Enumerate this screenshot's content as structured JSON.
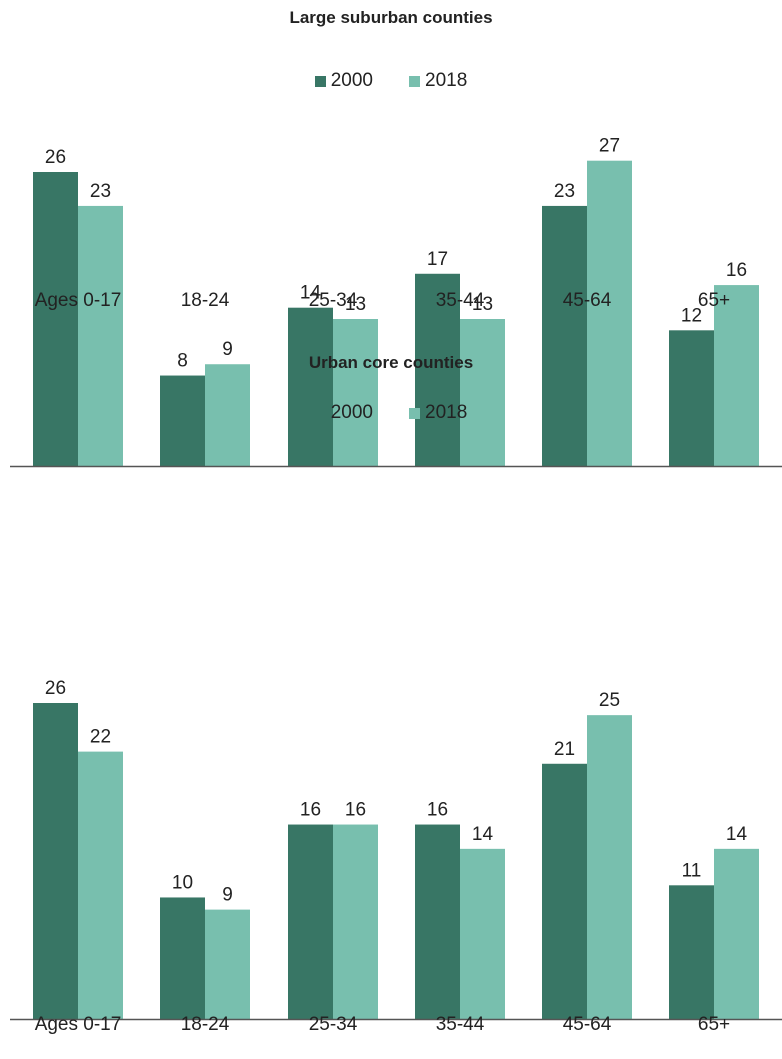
{
  "colors": {
    "series_2000": "#387665",
    "series_2018": "#78bfae",
    "axis": "#555555"
  },
  "chart_data": [
    {
      "type": "bar",
      "title": "Large suburban counties",
      "categories": [
        "Ages 0-17",
        "18-24",
        "25-34",
        "35-44",
        "45-64",
        "65+"
      ],
      "series": [
        {
          "name": "2000",
          "values": [
            26,
            8,
            14,
            17,
            23,
            12
          ]
        },
        {
          "name": "2018",
          "values": [
            23,
            9,
            13,
            13,
            27,
            16
          ]
        }
      ],
      "ylim": [
        0,
        30
      ],
      "grid": false,
      "legend_position": "top-center"
    },
    {
      "type": "bar",
      "title": "Urban core counties",
      "categories": [
        "Ages 0-17",
        "18-24",
        "25-34",
        "35-44",
        "45-64",
        "65+"
      ],
      "series": [
        {
          "name": "2000",
          "values": [
            26,
            10,
            16,
            16,
            21,
            11
          ]
        },
        {
          "name": "2018",
          "values": [
            22,
            9,
            16,
            14,
            25,
            14
          ]
        }
      ],
      "ylim": [
        0,
        30
      ],
      "grid": false,
      "legend_position": "top-center"
    }
  ]
}
